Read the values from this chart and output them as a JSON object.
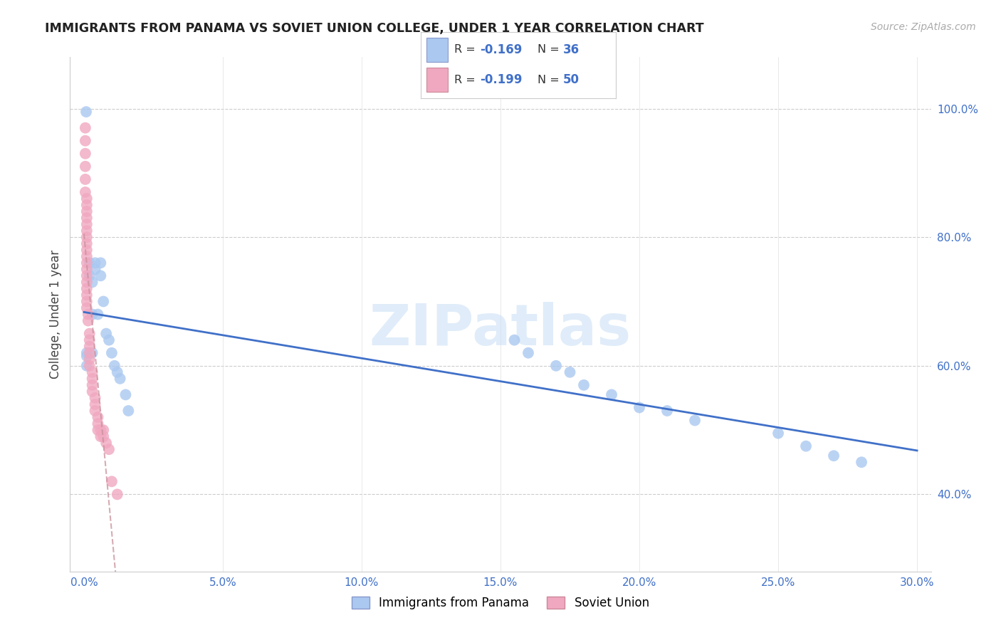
{
  "title": "IMMIGRANTS FROM PANAMA VS SOVIET UNION COLLEGE, UNDER 1 YEAR CORRELATION CHART",
  "source": "Source: ZipAtlas.com",
  "ylabel_label": "College, Under 1 year",
  "legend_bottom": [
    "Immigrants from Panama",
    "Soviet Union"
  ],
  "panama_R": -0.169,
  "panama_N": 36,
  "soviet_R": -0.199,
  "soviet_N": 50,
  "panama_color": "#aac8f0",
  "soviet_color": "#f0a8c0",
  "panama_line_color": "#4070c8",
  "soviet_line_color": "#c8909a",
  "watermark_color": "#cce0f5",
  "panama_x": [
    0.0008,
    0.001,
    0.001,
    0.001,
    0.002,
    0.002,
    0.003,
    0.003,
    0.003,
    0.004,
    0.004,
    0.005,
    0.006,
    0.006,
    0.007,
    0.008,
    0.009,
    0.01,
    0.011,
    0.012,
    0.013,
    0.015,
    0.016,
    0.155,
    0.16,
    0.17,
    0.175,
    0.18,
    0.19,
    0.2,
    0.21,
    0.22,
    0.25,
    0.26,
    0.27,
    0.28
  ],
  "panama_y": [
    0.995,
    0.62,
    0.615,
    0.6,
    0.76,
    0.74,
    0.68,
    0.73,
    0.62,
    0.76,
    0.75,
    0.68,
    0.76,
    0.74,
    0.7,
    0.65,
    0.64,
    0.62,
    0.6,
    0.59,
    0.58,
    0.555,
    0.53,
    0.64,
    0.62,
    0.6,
    0.59,
    0.57,
    0.555,
    0.535,
    0.53,
    0.515,
    0.495,
    0.475,
    0.46,
    0.45
  ],
  "soviet_x": [
    0.0005,
    0.0005,
    0.0005,
    0.0005,
    0.0005,
    0.0005,
    0.001,
    0.001,
    0.001,
    0.001,
    0.001,
    0.001,
    0.001,
    0.001,
    0.001,
    0.001,
    0.001,
    0.001,
    0.001,
    0.001,
    0.001,
    0.001,
    0.001,
    0.001,
    0.0015,
    0.0015,
    0.002,
    0.002,
    0.002,
    0.002,
    0.002,
    0.002,
    0.003,
    0.003,
    0.003,
    0.003,
    0.004,
    0.004,
    0.004,
    0.005,
    0.005,
    0.005,
    0.006,
    0.006,
    0.007,
    0.007,
    0.008,
    0.009,
    0.01,
    0.012
  ],
  "soviet_y": [
    0.97,
    0.95,
    0.93,
    0.91,
    0.89,
    0.87,
    0.86,
    0.85,
    0.84,
    0.83,
    0.82,
    0.81,
    0.8,
    0.79,
    0.78,
    0.77,
    0.76,
    0.75,
    0.74,
    0.73,
    0.72,
    0.71,
    0.7,
    0.69,
    0.68,
    0.67,
    0.65,
    0.64,
    0.63,
    0.62,
    0.61,
    0.6,
    0.59,
    0.58,
    0.57,
    0.56,
    0.55,
    0.54,
    0.53,
    0.52,
    0.51,
    0.5,
    0.5,
    0.49,
    0.5,
    0.49,
    0.48,
    0.47,
    0.42,
    0.4
  ],
  "xlim": [
    -0.005,
    0.305
  ],
  "ylim": [
    0.28,
    1.08
  ],
  "x_ticks": [
    0.0,
    0.05,
    0.1,
    0.15,
    0.2,
    0.25,
    0.3
  ],
  "y_ticks_right": [
    0.4,
    0.6,
    0.8,
    1.0
  ]
}
